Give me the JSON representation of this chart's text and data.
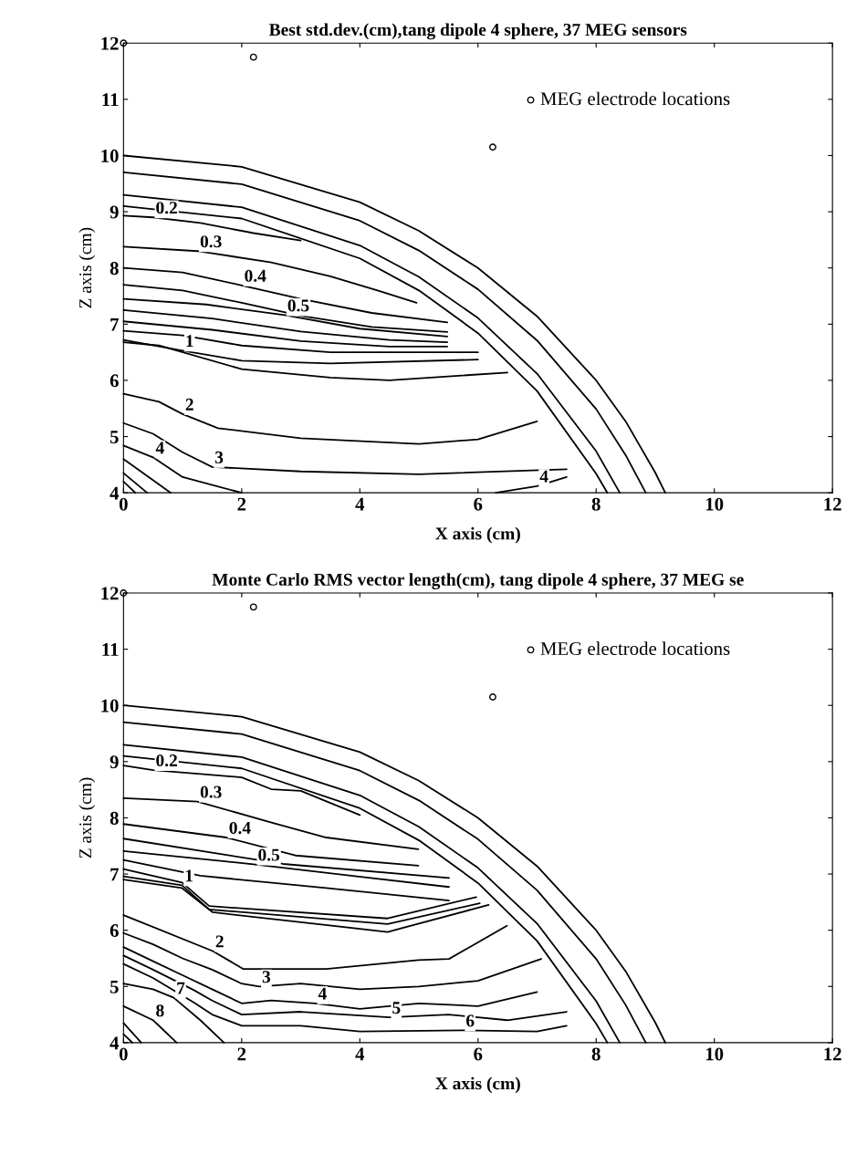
{
  "chart_data": [
    {
      "type": "line",
      "title": "Best std.dev.(cm),tang dipole 4 sphere, 37 MEG sensors",
      "xlabel": "X axis (cm)",
      "ylabel": "Z axis (cm)",
      "xlim": [
        0,
        12
      ],
      "ylim": [
        4,
        12
      ],
      "xticks": [
        0,
        2,
        4,
        6,
        8,
        10,
        12
      ],
      "yticks": [
        4,
        5,
        6,
        7,
        8,
        9,
        10,
        11,
        12
      ],
      "grid": false,
      "legend": "top right",
      "series": [
        {
          "color": "#000000",
          "x": [
            0,
            2,
            4,
            5,
            6,
            7,
            8,
            8.5,
            9,
            9.17
          ],
          "values": [
            10,
            9.8,
            9.17,
            8.66,
            8.0,
            7.14,
            6.0,
            5.27,
            4.36,
            4.0
          ]
        },
        {
          "color": "#000000",
          "x": [
            0,
            2,
            4,
            5,
            6,
            7,
            8,
            8.5,
            8.84
          ],
          "values": [
            9.7,
            9.49,
            8.84,
            8.31,
            7.62,
            6.71,
            5.49,
            4.67,
            4.0
          ]
        },
        {
          "color": "#000000",
          "x": [
            0,
            2,
            4,
            5,
            6,
            7,
            8,
            8.4
          ],
          "values": [
            9.3,
            9.08,
            8.4,
            7.84,
            7.11,
            6.12,
            4.74,
            4.0
          ]
        },
        {
          "color": "#000000",
          "x": [
            0,
            2,
            4,
            5,
            6,
            7,
            8,
            8.19
          ],
          "values": [
            9.1,
            8.88,
            8.17,
            7.6,
            6.84,
            5.81,
            4.34,
            4.0
          ]
        },
        {
          "color": "#000000",
          "x": [
            0,
            0.5,
            1.3,
            2.2,
            3.0
          ],
          "values": [
            8.93,
            8.9,
            8.8,
            8.62,
            8.49
          ]
        },
        {
          "color": "#000000",
          "x": [
            0,
            1.25,
            2.5,
            3.5,
            4.3,
            4.96
          ],
          "values": [
            8.38,
            8.3,
            8.1,
            7.85,
            7.6,
            7.38
          ]
        },
        {
          "color": "#000000",
          "x": [
            0,
            1,
            2,
            3,
            4.2,
            5.48
          ],
          "values": [
            8.0,
            7.92,
            7.69,
            7.45,
            7.2,
            7.03
          ]
        },
        {
          "color": "#000000",
          "x": [
            0,
            1,
            2,
            3,
            4.2,
            5.48
          ],
          "values": [
            7.7,
            7.6,
            7.38,
            7.15,
            6.95,
            6.86
          ]
        },
        {
          "color": "#000000",
          "x": [
            0,
            1.4,
            2.73,
            4,
            5.48
          ],
          "values": [
            7.45,
            7.35,
            7.16,
            6.92,
            6.78
          ]
        },
        {
          "color": "#000000",
          "x": [
            0,
            1.5,
            3,
            4.5,
            5.48
          ],
          "values": [
            7.25,
            7.1,
            6.87,
            6.72,
            6.68
          ]
        },
        {
          "color": "#000000",
          "x": [
            0,
            1.5,
            3,
            4.5,
            5.48
          ],
          "values": [
            7.05,
            6.9,
            6.7,
            6.6,
            6.6
          ]
        },
        {
          "color": "#000000",
          "x": [
            0,
            1,
            2,
            3.5,
            6
          ],
          "values": [
            6.88,
            6.8,
            6.62,
            6.5,
            6.5
          ]
        },
        {
          "color": "#000000",
          "x": [
            0,
            1,
            2,
            3.5,
            6
          ],
          "values": [
            6.72,
            6.53,
            6.35,
            6.3,
            6.37
          ]
        },
        {
          "color": "#000000",
          "x": [
            0,
            0.6,
            2,
            3.5,
            4.5,
            6.5
          ],
          "values": [
            6.68,
            6.62,
            6.2,
            6.05,
            6.0,
            6.14
          ]
        },
        {
          "color": "#000000",
          "x": [
            0,
            0.6,
            1,
            1.6,
            3,
            5,
            6,
            7
          ],
          "values": [
            5.76,
            5.62,
            5.4,
            5.15,
            4.97,
            4.87,
            4.95,
            5.27
          ]
        },
        {
          "color": "#000000",
          "x": [
            0,
            0.5,
            1,
            1.5,
            3,
            5,
            7.5
          ],
          "values": [
            5.24,
            5.05,
            4.72,
            4.46,
            4.38,
            4.33,
            4.42
          ]
        },
        {
          "color": "#000000",
          "x": [
            0,
            0.5,
            1,
            2
          ],
          "values": [
            4.84,
            4.63,
            4.28,
            4.0
          ]
        },
        {
          "color": "#000000",
          "x": [
            6.3,
            7,
            7.5
          ],
          "values": [
            4.0,
            4.12,
            4.28
          ]
        },
        {
          "color": "#000000",
          "x": [
            0,
            0.8
          ],
          "values": [
            4.6,
            4.0
          ]
        },
        {
          "color": "#000000",
          "x": [
            0,
            0.4
          ],
          "values": [
            4.35,
            4.0
          ]
        },
        {
          "color": "#000000",
          "x": [
            0,
            0.2
          ],
          "values": [
            4.2,
            4.0
          ]
        },
        {
          "type": "scatter",
          "name": "MEG electrode locations",
          "color": "#000000",
          "marker": "circle",
          "x": [
            0,
            2.2,
            6.25
          ],
          "values": [
            12,
            11.75,
            10.15
          ]
        }
      ],
      "annotations": [
        {
          "text": "0.2",
          "x": 0.5,
          "y": 8.9
        },
        {
          "text": "0.3",
          "x": 1.25,
          "y": 8.3
        },
        {
          "text": "0.4",
          "x": 2.0,
          "y": 7.69
        },
        {
          "text": "0.5",
          "x": 2.73,
          "y": 7.16
        },
        {
          "text": "1",
          "x": 1.0,
          "y": 6.53
        },
        {
          "text": "2",
          "x": 1.0,
          "y": 5.4
        },
        {
          "text": "3",
          "x": 1.5,
          "y": 4.46
        },
        {
          "text": "4",
          "x": 0.5,
          "y": 4.63
        },
        {
          "text": "4",
          "x": 7.0,
          "y": 4.12
        }
      ]
    },
    {
      "type": "line",
      "title": "Monte Carlo RMS vector length(cm), tang dipole 4 sphere, 37 MEG se",
      "xlabel": "X axis (cm)",
      "ylabel": "Z axis (cm)",
      "xlim": [
        0,
        12
      ],
      "ylim": [
        4,
        12
      ],
      "xticks": [
        0,
        2,
        4,
        6,
        8,
        10,
        12
      ],
      "yticks": [
        4,
        5,
        6,
        7,
        8,
        9,
        10,
        11,
        12
      ],
      "grid": false,
      "legend": "top right",
      "series": [
        {
          "color": "#000000",
          "x": [
            0,
            2,
            4,
            5,
            6,
            7,
            8,
            8.5,
            9,
            9.17
          ],
          "values": [
            10,
            9.8,
            9.17,
            8.66,
            8.0,
            7.14,
            6.0,
            5.27,
            4.36,
            4.0
          ]
        },
        {
          "color": "#000000",
          "x": [
            0,
            2,
            4,
            5,
            6,
            7,
            8,
            8.5,
            8.84
          ],
          "values": [
            9.7,
            9.49,
            8.84,
            8.31,
            7.62,
            6.71,
            5.49,
            4.67,
            4.0
          ]
        },
        {
          "color": "#000000",
          "x": [
            0,
            2,
            4,
            5,
            6,
            7,
            8,
            8.4
          ],
          "values": [
            9.3,
            9.08,
            8.4,
            7.84,
            7.11,
            6.12,
            4.74,
            4.0
          ]
        },
        {
          "color": "#000000",
          "x": [
            0,
            2,
            4,
            5,
            6,
            7,
            8,
            8.19
          ],
          "values": [
            9.1,
            8.88,
            8.17,
            7.6,
            6.84,
            5.81,
            4.34,
            4.0
          ]
        },
        {
          "color": "#000000",
          "x": [
            0,
            0.5,
            2,
            2.5,
            3,
            4
          ],
          "values": [
            8.93,
            8.85,
            8.72,
            8.51,
            8.48,
            8.05
          ]
        },
        {
          "color": "#000000",
          "x": [
            0,
            1.25,
            2.49,
            3.43,
            4.99
          ],
          "values": [
            8.35,
            8.29,
            7.92,
            7.65,
            7.44
          ]
        },
        {
          "color": "#000000",
          "x": [
            0,
            1.74,
            2.91,
            4.99
          ],
          "values": [
            7.89,
            7.65,
            7.33,
            7.15
          ]
        },
        {
          "color": "#000000",
          "x": [
            0,
            2.7,
            5.51
          ],
          "values": [
            7.63,
            7.18,
            6.93
          ]
        },
        {
          "color": "#000000",
          "x": [
            0,
            2.23,
            3.95,
            5.51
          ],
          "values": [
            7.41,
            7.17,
            6.96,
            6.77
          ]
        },
        {
          "color": "#000000",
          "x": [
            0,
            1.3,
            3.43,
            5.51
          ],
          "values": [
            7.25,
            6.97,
            6.75,
            6.53
          ]
        },
        {
          "color": "#000000",
          "x": [
            0,
            0.99,
            1.45,
            4.47,
            5.97
          ],
          "values": [
            7.09,
            6.85,
            6.43,
            6.21,
            6.59
          ]
        },
        {
          "color": "#000000",
          "x": [
            0,
            0.99,
            1.45,
            4.47,
            6.03
          ],
          "values": [
            6.96,
            6.8,
            6.37,
            6.11,
            6.48
          ]
        },
        {
          "color": "#000000",
          "x": [
            0,
            0.99,
            1.51,
            4.47,
            6.18
          ],
          "values": [
            6.9,
            6.75,
            6.32,
            5.97,
            6.45
          ]
        },
        {
          "color": "#000000",
          "x": [
            0,
            1.51,
            2.03,
            3.43,
            4.99,
            5.51,
            6.49
          ],
          "values": [
            6.27,
            5.63,
            5.31,
            5.31,
            5.47,
            5.49,
            6.08
          ]
        },
        {
          "color": "#000000",
          "x": [
            0,
            0.5,
            1,
            1.5,
            2.0,
            2.3,
            3,
            4,
            5,
            6,
            7.07
          ],
          "values": [
            5.95,
            5.75,
            5.5,
            5.3,
            5.05,
            5.0,
            5.05,
            4.95,
            5.0,
            5.1,
            5.49
          ]
        },
        {
          "color": "#000000",
          "x": [
            0,
            0.5,
            1,
            1.5,
            2,
            2.5,
            3.25,
            4,
            5,
            6,
            7
          ],
          "values": [
            5.7,
            5.45,
            5.2,
            4.95,
            4.7,
            4.75,
            4.7,
            4.6,
            4.7,
            4.65,
            4.9
          ]
        },
        {
          "color": "#000000",
          "x": [
            0,
            0.5,
            1.2,
            1.5,
            2,
            3,
            4.5,
            5.5,
            6.5,
            7.5
          ],
          "values": [
            5.55,
            5.3,
            4.93,
            4.75,
            4.5,
            4.55,
            4.45,
            4.5,
            4.4,
            4.55
          ]
        },
        {
          "color": "#000000",
          "x": [
            0,
            0.5,
            1.2,
            1.5,
            2,
            3,
            4,
            5.75,
            7,
            7.5
          ],
          "values": [
            5.4,
            5.15,
            4.71,
            4.5,
            4.3,
            4.3,
            4.2,
            4.22,
            4.2,
            4.3
          ]
        },
        {
          "color": "#000000",
          "x": [
            0,
            0.5,
            0.85,
            1.3,
            1.7
          ],
          "values": [
            5.05,
            4.95,
            4.8,
            4.4,
            4.0
          ]
        },
        {
          "color": "#000000",
          "x": [
            0,
            0.5,
            0.9
          ],
          "values": [
            4.65,
            4.4,
            4.0
          ]
        },
        {
          "color": "#000000",
          "x": [
            0,
            0.3
          ],
          "values": [
            4.35,
            4.0
          ]
        },
        {
          "color": "#000000",
          "x": [
            0,
            0.15
          ],
          "values": [
            4.15,
            4.0
          ]
        },
        {
          "type": "scatter",
          "name": "MEG electrode locations",
          "color": "#000000",
          "marker": "circle",
          "x": [
            0,
            2.2,
            6.25
          ],
          "values": [
            12,
            11.75,
            10.15
          ]
        }
      ],
      "annotations": [
        {
          "text": "0.2",
          "x": 0.5,
          "y": 8.85
        },
        {
          "text": "0.3",
          "x": 1.25,
          "y": 8.29
        },
        {
          "text": "0.4",
          "x": 1.74,
          "y": 7.65
        },
        {
          "text": "0.5",
          "x": 2.23,
          "y": 7.17
        },
        {
          "text": "1",
          "x": 0.99,
          "y": 6.8
        },
        {
          "text": "2",
          "x": 1.51,
          "y": 5.63
        },
        {
          "text": "3",
          "x": 2.3,
          "y": 5.0
        },
        {
          "text": "4",
          "x": 3.25,
          "y": 4.7
        },
        {
          "text": "5",
          "x": 4.5,
          "y": 4.45
        },
        {
          "text": "6",
          "x": 5.75,
          "y": 4.22
        },
        {
          "text": "7",
          "x": 0.85,
          "y": 4.8
        },
        {
          "text": "8",
          "x": 0.5,
          "y": 4.4
        }
      ]
    }
  ]
}
